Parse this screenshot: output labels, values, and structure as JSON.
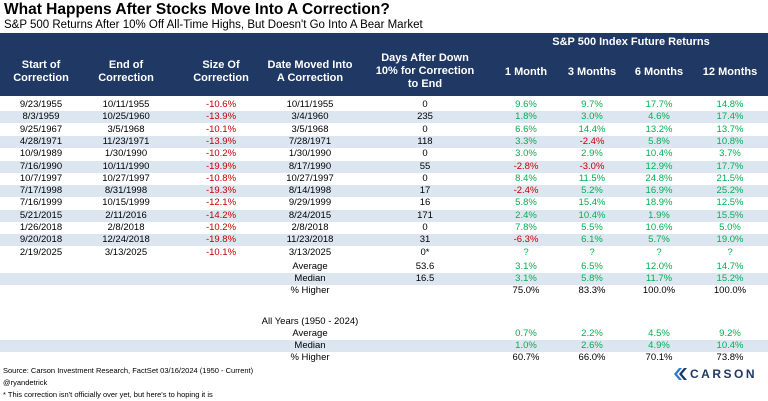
{
  "title": "What Happens After Stocks Move Into A Correction?",
  "subtitle": "S&P 500 Returns After 10% Off All-Time Highs, But Doesn't Go Into A Bear Market",
  "header": {
    "future_title": "S&P 500 Index Future Returns",
    "columns": [
      "Start of Correction",
      "End of Correction",
      "Size Of Correction",
      "Date Moved Into A Correction",
      "Days After Down 10% for Correction to End",
      "1 Month",
      "3 Months",
      "6 Months",
      "12 Months"
    ]
  },
  "chart_data": {
    "type": "table",
    "title": "What Happens After Stocks Move Into A Correction?",
    "subtitle": "S&P 500 Returns After 10% Off All-Time Highs, But Doesn't Go Into A Bear Market",
    "rows": [
      [
        "9/23/1955",
        "10/11/1955",
        "-10.6%",
        "10/11/1955",
        "0",
        "9.6%",
        "9.7%",
        "17.7%",
        "14.8%"
      ],
      [
        "8/3/1959",
        "10/25/1960",
        "-13.9%",
        "3/4/1960",
        "235",
        "1.8%",
        "3.0%",
        "4.6%",
        "17.4%"
      ],
      [
        "9/25/1967",
        "3/5/1968",
        "-10.1%",
        "3/5/1968",
        "0",
        "6.6%",
        "14.4%",
        "13.2%",
        "13.7%"
      ],
      [
        "4/28/1971",
        "11/23/1971",
        "-13.9%",
        "7/28/1971",
        "118",
        "3.3%",
        "-2.4%",
        "5.8%",
        "10.8%"
      ],
      [
        "10/9/1989",
        "1/30/1990",
        "-10.2%",
        "1/30/1990",
        "0",
        "3.0%",
        "2.9%",
        "10.4%",
        "3.7%"
      ],
      [
        "7/16/1990",
        "10/11/1990",
        "-19.9%",
        "8/17/1990",
        "55",
        "-2.8%",
        "-3.0%",
        "12.9%",
        "17.7%"
      ],
      [
        "10/7/1997",
        "10/27/1997",
        "-10.8%",
        "10/27/1997",
        "0",
        "8.4%",
        "11.5%",
        "24.8%",
        "21.5%"
      ],
      [
        "7/17/1998",
        "8/31/1998",
        "-19.3%",
        "8/14/1998",
        "17",
        "-2.4%",
        "5.2%",
        "16.9%",
        "25.2%"
      ],
      [
        "7/16/1999",
        "10/15/1999",
        "-12.1%",
        "9/29/1999",
        "16",
        "5.8%",
        "15.4%",
        "18.9%",
        "12.5%"
      ],
      [
        "5/21/2015",
        "2/11/2016",
        "-14.2%",
        "8/24/2015",
        "171",
        "2.4%",
        "10.4%",
        "1.9%",
        "15.5%"
      ],
      [
        "1/26/2018",
        "2/8/2018",
        "-10.2%",
        "2/8/2018",
        "0",
        "7.8%",
        "5.5%",
        "10.6%",
        "5.0%"
      ],
      [
        "9/20/2018",
        "12/24/2018",
        "-19.8%",
        "11/23/2018",
        "31",
        "-6.3%",
        "6.1%",
        "5.7%",
        "19.0%"
      ],
      [
        "2/19/2025",
        "3/13/2025",
        "-10.1%",
        "3/13/2025",
        "0*",
        "?",
        "?",
        "?",
        "?"
      ]
    ],
    "summary": [
      {
        "label": "Average",
        "days": "53.6",
        "m1": "3.1%",
        "m3": "6.5%",
        "m6": "12.0%",
        "m12": "14.7%"
      },
      {
        "label": "Median",
        "days": "16.5",
        "m1": "3.1%",
        "m3": "5.8%",
        "m6": "11.7%",
        "m12": "15.2%"
      },
      {
        "label": "% Higher",
        "days": "",
        "m1": "75.0%",
        "m3": "83.3%",
        "m6": "100.0%",
        "m12": "100.0%"
      }
    ],
    "all_years_title": "All Years (1950 - 2024)",
    "all_years": [
      {
        "label": "Average",
        "m1": "0.7%",
        "m3": "2.2%",
        "m6": "4.5%",
        "m12": "9.2%"
      },
      {
        "label": "Median",
        "m1": "1.0%",
        "m3": "2.6%",
        "m6": "4.9%",
        "m12": "10.4%"
      },
      {
        "label": "% Higher",
        "m1": "60.7%",
        "m3": "66.0%",
        "m6": "70.1%",
        "m12": "73.8%"
      }
    ]
  },
  "footer": {
    "source": "Source: Carson Investment Research, FactSet 03/16/2024 (1950 - Current)",
    "handle": "@ryandetrick",
    "note": "* This correction isn't officially over yet, but here's to hoping it is"
  },
  "logo": {
    "text": "CARSON",
    "color": "#1f3864"
  },
  "colors": {
    "header_bg": "#1f3864",
    "alt_row": "#dce6f1",
    "negative": "#c00000",
    "positive": "#00b050"
  }
}
